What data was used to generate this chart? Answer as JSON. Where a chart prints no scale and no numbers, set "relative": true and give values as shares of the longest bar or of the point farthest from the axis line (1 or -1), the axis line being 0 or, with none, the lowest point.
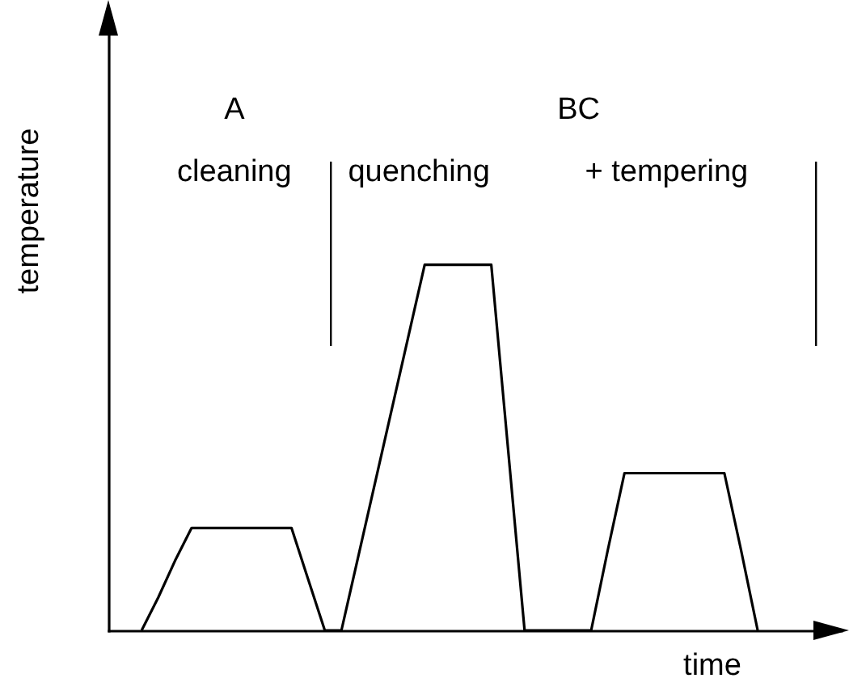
{
  "chart_data": {
    "type": "line",
    "relative": true,
    "xlabel": "time",
    "ylabel": "temperature",
    "line_style": "solid",
    "categories": [
      null,
      null,
      null,
      null,
      null,
      null,
      null,
      null,
      null,
      null,
      null,
      null,
      null,
      null,
      null,
      null,
      null,
      null,
      null,
      null,
      null,
      null,
      null,
      null,
      null,
      null,
      null,
      null,
      null,
      null,
      null,
      null,
      null,
      null,
      null,
      null,
      null,
      null,
      null,
      null,
      null,
      null,
      null,
      null,
      null
    ],
    "series": [
      {
        "color": "#000000",
        "values": [
          null,
          null,
          0,
          0.09,
          0.19,
          0.28,
          0.28,
          0.28,
          0.28,
          0.28,
          0.28,
          0.28,
          0.14,
          0,
          0,
          0.2,
          0.4,
          0.6,
          0.8,
          1,
          1,
          1,
          1,
          1,
          0.5,
          0,
          0,
          0,
          0,
          0,
          0.22,
          0.43,
          0.43,
          0.43,
          0.43,
          0.43,
          0.43,
          0.43,
          0.22,
          0,
          null,
          null,
          null,
          null,
          null
        ]
      }
    ],
    "annotations": [
      "A",
      "cleaning",
      "BC",
      "quenching",
      "+ tempering"
    ]
  }
}
